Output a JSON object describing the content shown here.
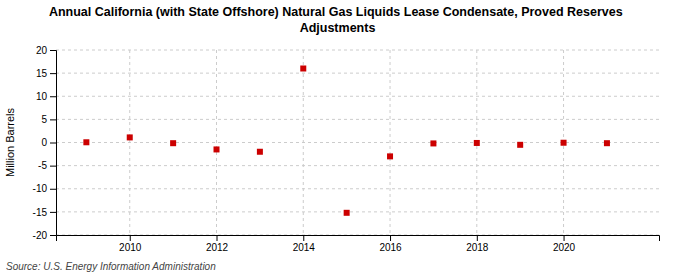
{
  "chart_data": {
    "type": "scatter",
    "title": "Annual California (with State Offshore) Natural Gas Liquids Lease Condensate, Proved Reserves Adjustments",
    "ylabel": "Million Barrels",
    "source": "Source: U.S. Energy Information Administration",
    "x": [
      2009,
      2010,
      2011,
      2012,
      2013,
      2014,
      2015,
      2016,
      2017,
      2018,
      2019,
      2020,
      2021
    ],
    "values": [
      0.05,
      1.1,
      -0.15,
      -1.5,
      -2.0,
      16.0,
      -15.2,
      -3.0,
      -0.2,
      -0.1,
      -0.5,
      -0.05,
      -0.15
    ],
    "xlim": [
      2008.3,
      2022.2
    ],
    "xticks": [
      2010,
      2012,
      2014,
      2016,
      2018,
      2020
    ],
    "ylim": [
      -20,
      20
    ],
    "yticks": [
      -20,
      -15,
      -10,
      -5,
      0,
      5,
      10,
      15,
      20
    ],
    "color": "#cc0000",
    "marker": "square",
    "grid": true
  }
}
